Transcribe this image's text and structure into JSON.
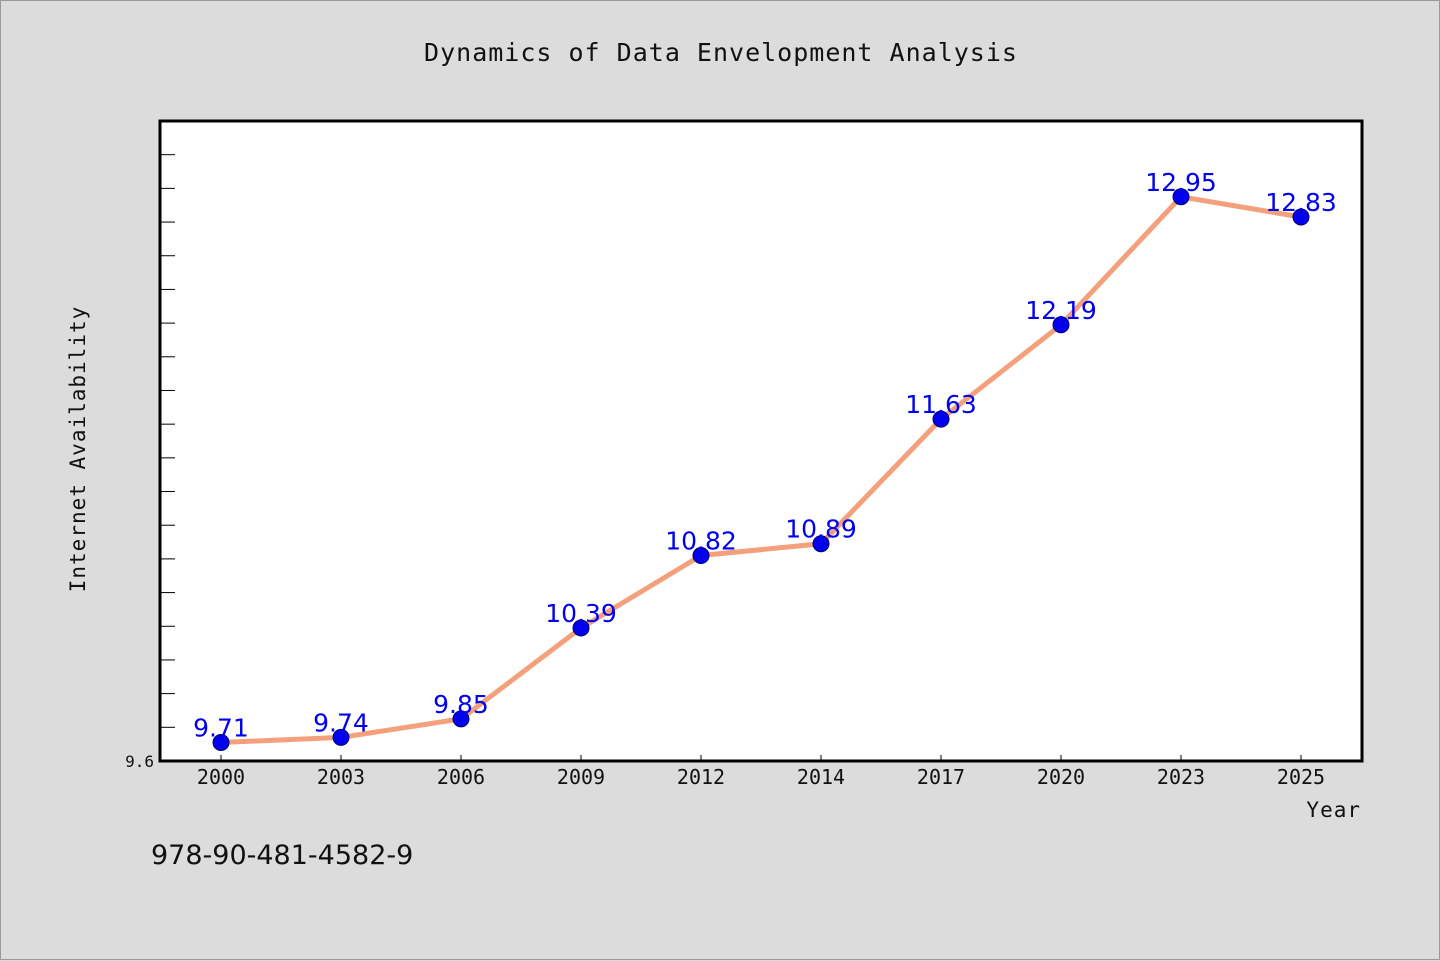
{
  "chart_data": {
    "type": "line",
    "title": "Dynamics of Data Envelopment Analysis",
    "xlabel": "Year",
    "ylabel": "Internet Availability",
    "categories": [
      "2000",
      "2003",
      "2006",
      "2009",
      "2012",
      "2014",
      "2017",
      "2020",
      "2023",
      "2025"
    ],
    "series": [
      {
        "values": [
          9.71,
          9.74,
          9.85,
          10.39,
          10.82,
          10.89,
          11.63,
          12.19,
          12.95,
          12.83
        ]
      }
    ],
    "data_labels": [
      "9.71",
      "9.74",
      "9.85",
      "10.39",
      "10.82",
      "10.89",
      "11.63",
      "12.19",
      "12.95",
      "12.83"
    ],
    "y_tick_label": "9.6",
    "ylim": [
      9.6,
      13.4
    ],
    "grid": false,
    "legend": "none",
    "colors": {
      "line": "#f4a07c",
      "marker": "#0000ee",
      "marker_edge": "#000066",
      "data_label": "#0000ee",
      "background": "#dcdcdc",
      "plot_background": "#ffffff"
    }
  },
  "footer": {
    "code": "978-90-481-4582-9"
  }
}
